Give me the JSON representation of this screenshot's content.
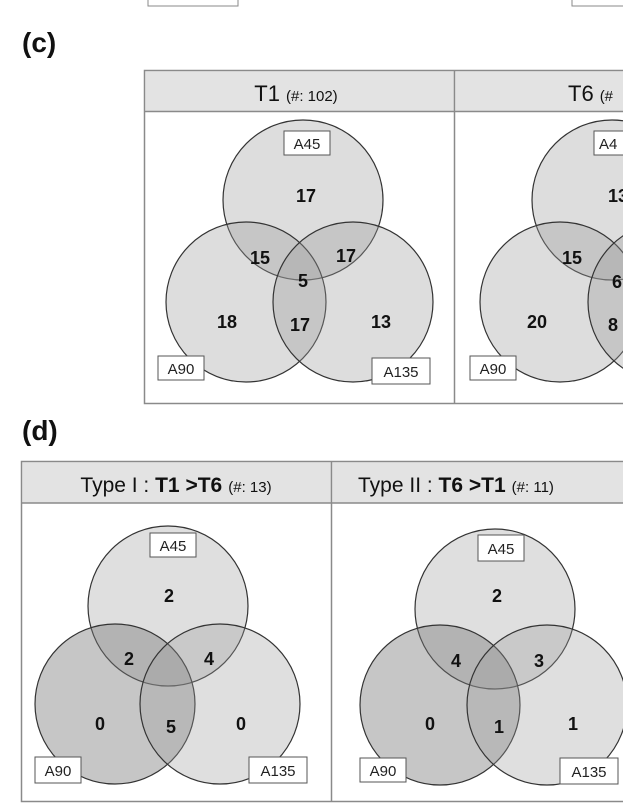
{
  "sections": [
    {
      "label": "(c)",
      "panels": [
        {
          "title": "T1",
          "count": "(#: 102)",
          "sets": [
            "A45",
            "A90",
            "A135"
          ],
          "regions": {
            "a_only": "17",
            "ab": "15",
            "ac": "17",
            "abc": "5",
            "b_only": "18",
            "bc": "17",
            "c_only": "13"
          }
        },
        {
          "title": "T6",
          "count": "(#",
          "sets": [
            "A4",
            "A90",
            ""
          ],
          "regions": {
            "a_only": "13",
            "ab": "15",
            "ac": "",
            "abc": "6",
            "b_only": "20",
            "bc": "8",
            "c_only": ""
          }
        }
      ]
    },
    {
      "label": "(d)",
      "panels": [
        {
          "title_prefix": "Type I : ",
          "title_bold": "T1 >T6",
          "count": "(#: 13)",
          "sets": [
            "A45",
            "A90",
            "A135"
          ],
          "regions": {
            "a_only": "2",
            "ab": "2",
            "ac": "4",
            "abc": "",
            "b_only": "0",
            "bc": "5",
            "c_only": "0"
          }
        },
        {
          "title_prefix": "Type II : ",
          "title_bold": "T6 >T1",
          "count": "(#: 11)",
          "sets": [
            "A45",
            "A90",
            "A135"
          ],
          "regions": {
            "a_only": "2",
            "ab": "4",
            "ac": "3",
            "abc": "",
            "b_only": "0",
            "bc": "1",
            "c_only": "1"
          }
        }
      ]
    }
  ],
  "colors": {
    "header_fill": "#e3e3e3",
    "circle_fill": "#9a9a9a",
    "circle_stroke": "#333333",
    "border": "#8a8a8a"
  }
}
